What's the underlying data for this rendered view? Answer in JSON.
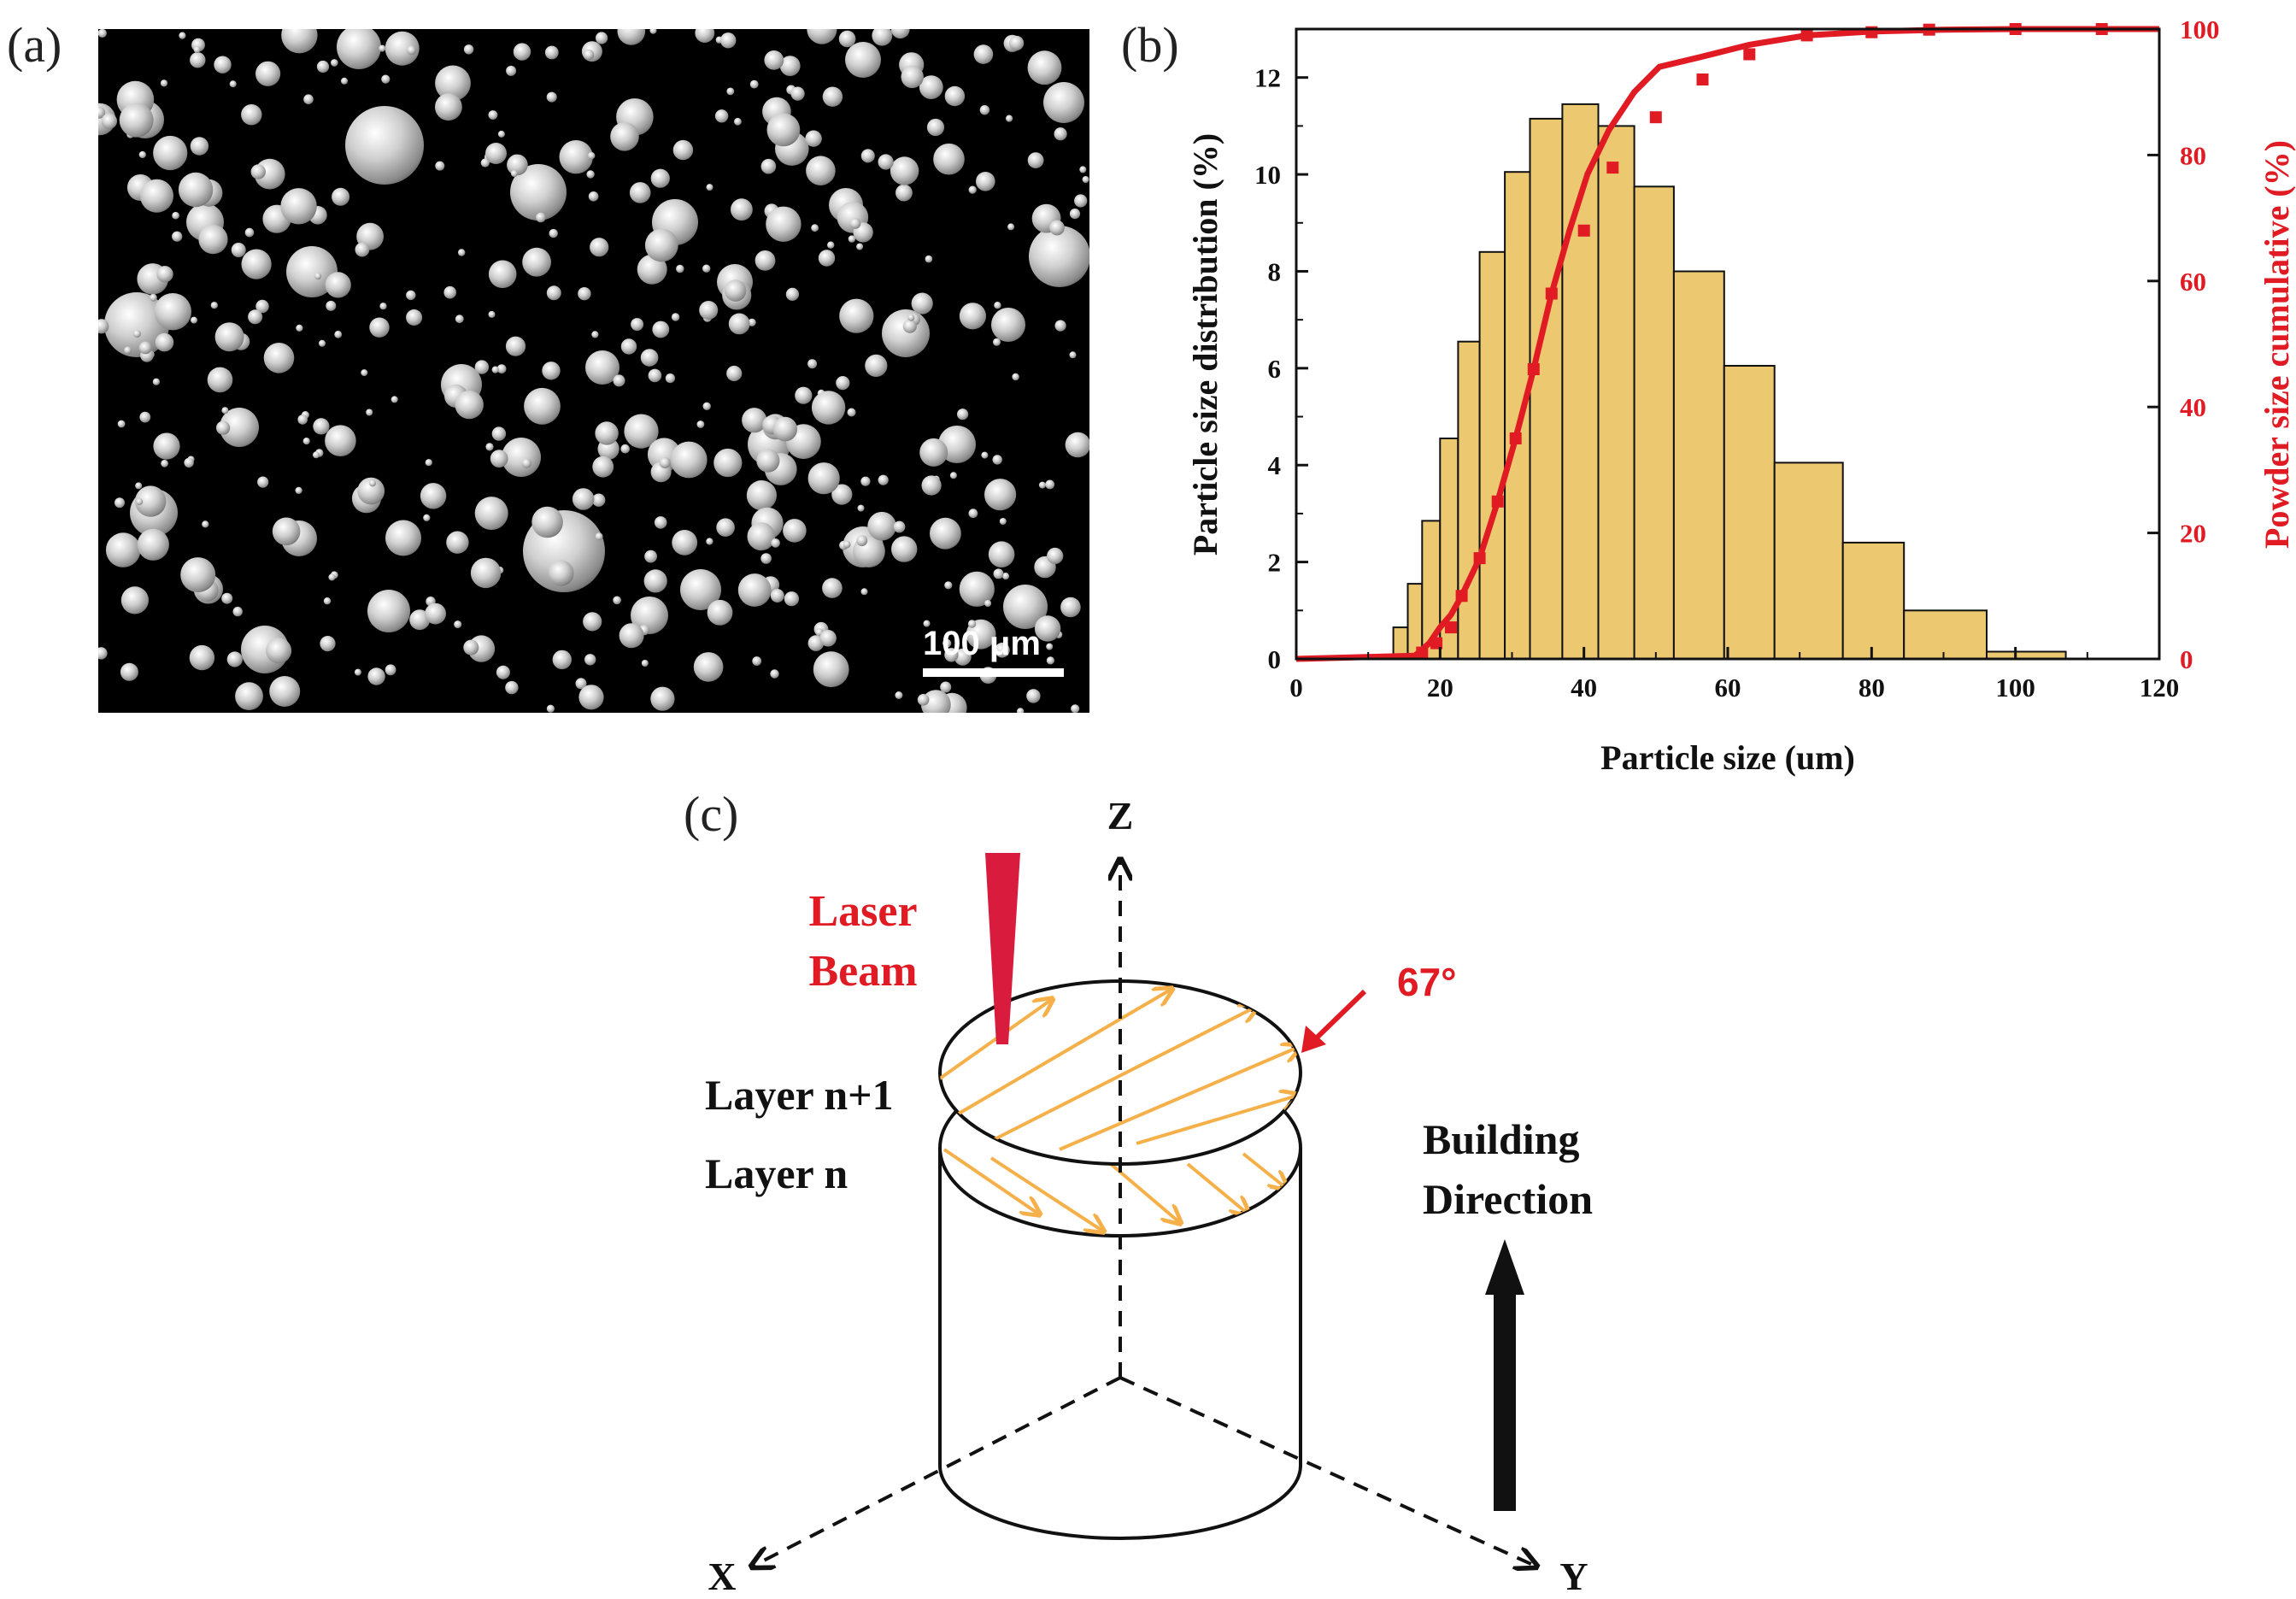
{
  "panels": {
    "a": {
      "label": "(a)",
      "scale_bar_text": "100 μm",
      "background_color": "#000000",
      "particle_color": "#d8d8d8"
    },
    "b": {
      "label": "(b)"
    },
    "c": {
      "label": "(c)",
      "laser_line1": "Laser",
      "laser_line2": "Beam",
      "angle": "67°",
      "layer_top": "Layer n+1",
      "layer_bottom": "Layer n",
      "building_line1": "Building",
      "building_line2": "Direction",
      "axis_z": "Z",
      "axis_x": "X",
      "axis_y": "Y",
      "colors": {
        "laser": "#d91c3d",
        "scan": "#f5b04a",
        "text_red": "#e01b24"
      }
    }
  },
  "chart_data": {
    "type": "bar",
    "xlabel": "Particle size (um)",
    "ylabel": "Particle size distribution (%)",
    "y2label": "Powder size cumulative (%)",
    "xlim": [
      0,
      120
    ],
    "ylim": [
      0,
      13
    ],
    "y2lim": [
      0,
      100
    ],
    "x_ticks": [
      "0",
      "20",
      "40",
      "60",
      "80",
      "100",
      "120"
    ],
    "y_ticks": [
      "0",
      "2",
      "4",
      "6",
      "8",
      "10",
      "12"
    ],
    "y2_ticks": [
      "0",
      "20",
      "40",
      "60",
      "80",
      "100"
    ],
    "bar_color": "#ecc871",
    "line_color": "#e01b24",
    "bars": [
      {
        "start": 13.5,
        "end": 15.5,
        "value": 0.65
      },
      {
        "start": 15.5,
        "end": 17.5,
        "value": 1.55
      },
      {
        "start": 17.5,
        "end": 20.0,
        "value": 2.85
      },
      {
        "start": 20.0,
        "end": 22.5,
        "value": 4.55
      },
      {
        "start": 22.5,
        "end": 25.5,
        "value": 6.55
      },
      {
        "start": 25.5,
        "end": 29.0,
        "value": 8.4
      },
      {
        "start": 29.0,
        "end": 32.5,
        "value": 10.05
      },
      {
        "start": 32.5,
        "end": 37.0,
        "value": 11.15
      },
      {
        "start": 37.0,
        "end": 42.0,
        "value": 11.45
      },
      {
        "start": 42.0,
        "end": 47.0,
        "value": 11.0
      },
      {
        "start": 47.0,
        "end": 52.5,
        "value": 9.75
      },
      {
        "start": 52.5,
        "end": 59.5,
        "value": 8.0
      },
      {
        "start": 59.5,
        "end": 66.5,
        "value": 6.05
      },
      {
        "start": 66.5,
        "end": 76.0,
        "value": 4.05
      },
      {
        "start": 76.0,
        "end": 84.5,
        "value": 2.4
      },
      {
        "start": 84.5,
        "end": 96.0,
        "value": 1.0
      },
      {
        "start": 96.0,
        "end": 107.0,
        "value": 0.15
      }
    ],
    "cumulative": {
      "x": [
        0,
        16.5,
        18.5,
        20.0,
        21.5,
        23.0,
        25.5,
        28.0,
        30.5,
        33.0,
        35.5,
        38.0,
        40.5,
        43.5,
        47.0,
        50.5,
        56.0,
        63.0,
        71.0,
        80.0,
        90.0,
        100.0,
        112.0,
        120.0
      ],
      "y": [
        0,
        0.5,
        2.5,
        5,
        7,
        10,
        16,
        25,
        35,
        46,
        58,
        68,
        77,
        84,
        90,
        94,
        95.5,
        97.5,
        99,
        99.6,
        99.9,
        100,
        100,
        100
      ],
      "marker_x": [
        17.5,
        19.5,
        21.5,
        23,
        25.5,
        28,
        30.5,
        33,
        35.5,
        40,
        44,
        50,
        56.5,
        63,
        71,
        80,
        88,
        100,
        112
      ],
      "marker_y": [
        1,
        2.5,
        5,
        10,
        16,
        25,
        35,
        46,
        58,
        68,
        78,
        86,
        92,
        96,
        99,
        99.5,
        99.9,
        100,
        100
      ]
    }
  }
}
